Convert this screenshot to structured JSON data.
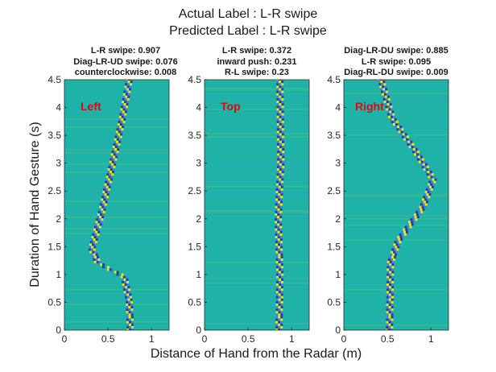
{
  "figure": {
    "title_line1": "Actual Label : L-R swipe",
    "title_line2": "Predicted Label : L-R swipe",
    "xlabel": "Distance of Hand from the Radar (m)",
    "ylabel": "Duration of Hand Gesture (s)"
  },
  "chart_data": [
    {
      "type": "heatmap",
      "panel_label": "Left",
      "predictions": [
        "L-R swipe: 0.907",
        "Diag-LR-UD swipe: 0.076",
        "counterclockwise: 0.008"
      ],
      "xlim": [
        0,
        1.2
      ],
      "ylim": [
        0,
        4.5
      ],
      "xticks": [
        "0",
        "0.5",
        "1"
      ],
      "yticks": [
        "0",
        "0.5",
        "1",
        "1.5",
        "2",
        "2.5",
        "3",
        "3.5",
        "4",
        "4.5"
      ],
      "trace": [
        [
          0.75,
          0
        ],
        [
          0.74,
          0.5
        ],
        [
          0.68,
          0.95
        ],
        [
          0.38,
          1.2
        ],
        [
          0.31,
          1.45
        ],
        [
          0.42,
          2.1
        ],
        [
          0.55,
          3.0
        ],
        [
          0.66,
          3.8
        ],
        [
          0.74,
          4.5
        ]
      ]
    },
    {
      "type": "heatmap",
      "panel_label": "Top",
      "predictions": [
        "L-R swipe: 0.372",
        "inward push: 0.231",
        "R-L swipe: 0.23"
      ],
      "xlim": [
        0,
        1.2
      ],
      "ylim": [
        0,
        4.5
      ],
      "xticks": [
        "0",
        "0.5",
        "1"
      ],
      "yticks": [
        "0",
        "0.5",
        "1",
        "1.5",
        "2",
        "2.5",
        "3",
        "3.5",
        "4",
        "4.5"
      ],
      "trace": [
        [
          0.85,
          0
        ],
        [
          0.86,
          1.0
        ],
        [
          0.84,
          2.0
        ],
        [
          0.87,
          3.0
        ],
        [
          0.86,
          4.5
        ]
      ]
    },
    {
      "type": "heatmap",
      "panel_label": "Right",
      "predictions": [
        "Diag-LR-DU swipe: 0.885",
        "L-R swipe: 0.095",
        "Diag-RL-DU swipe: 0.009"
      ],
      "xlim": [
        0,
        1.2
      ],
      "ylim": [
        0,
        4.5
      ],
      "xticks": [
        "0",
        "0.5",
        "1"
      ],
      "yticks": [
        "0",
        "0.5",
        "1",
        "1.5",
        "2",
        "2.5",
        "3",
        "3.5",
        "4",
        "4.5"
      ],
      "trace": [
        [
          0.52,
          0
        ],
        [
          0.53,
          1.2
        ],
        [
          0.62,
          1.6
        ],
        [
          0.9,
          2.2
        ],
        [
          1.02,
          2.7
        ],
        [
          0.82,
          3.2
        ],
        [
          0.55,
          3.8
        ],
        [
          0.42,
          4.5
        ]
      ]
    }
  ],
  "colors": {
    "bg": "#1fb3a8",
    "bright": "#f5e21a",
    "dark": "#2a3d9c",
    "mid": "#2f8de0",
    "label": "#d01010"
  }
}
